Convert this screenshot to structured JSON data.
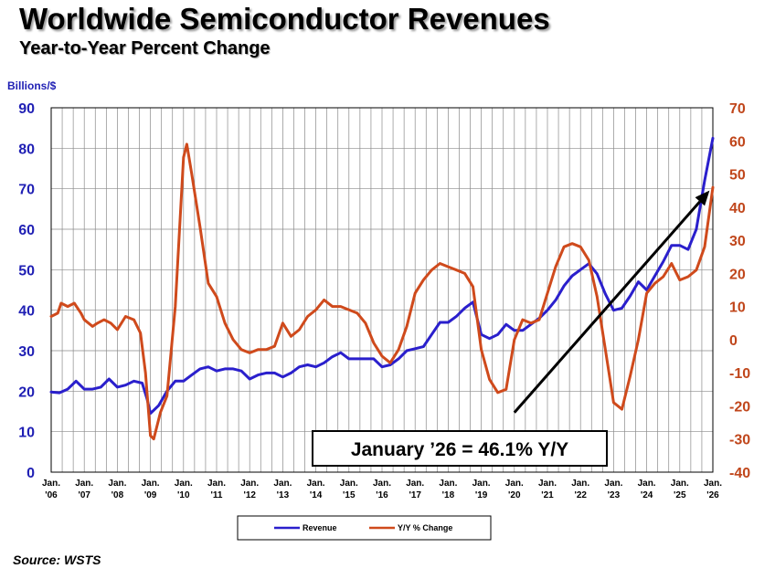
{
  "header": {
    "title": "Worldwide Semiconductor Revenues",
    "subtitle": "Year-to-Year Percent Change"
  },
  "footer": {
    "source": "Source: WSTS"
  },
  "colors": {
    "revenue": "#2a1fcc",
    "yoy": "#cf4a1c",
    "grid": "#8a8a8a",
    "arrow": "#000000"
  },
  "chart_data": {
    "type": "line",
    "ylabel_left": "Billions/$",
    "ylim_left": [
      0,
      90
    ],
    "yticks_left": [
      0,
      10,
      20,
      30,
      40,
      50,
      60,
      70,
      80,
      90
    ],
    "ylim_right": [
      -40,
      70
    ],
    "yticks_right": [
      -40,
      -30,
      -20,
      -10,
      0,
      10,
      20,
      30,
      40,
      50,
      60,
      70
    ],
    "x_range": [
      2006.0,
      2026.0
    ],
    "x_ticks": [
      {
        "year": 2006,
        "label_top": "Jan.",
        "label_bottom": "'06"
      },
      {
        "year": 2007,
        "label_top": "Jan.",
        "label_bottom": "'07"
      },
      {
        "year": 2008,
        "label_top": "Jan.",
        "label_bottom": "'08"
      },
      {
        "year": 2009,
        "label_top": "Jan.",
        "label_bottom": "'09"
      },
      {
        "year": 2010,
        "label_top": "Jan.",
        "label_bottom": "'10"
      },
      {
        "year": 2011,
        "label_top": "Jan.",
        "label_bottom": "'11"
      },
      {
        "year": 2012,
        "label_top": "Jan.",
        "label_bottom": "'12"
      },
      {
        "year": 2013,
        "label_top": "Jan.",
        "label_bottom": "'13"
      },
      {
        "year": 2014,
        "label_top": "Jan.",
        "label_bottom": "'14"
      },
      {
        "year": 2015,
        "label_top": "Jan.",
        "label_bottom": "'15"
      },
      {
        "year": 2016,
        "label_top": "Jan.",
        "label_bottom": "'16"
      },
      {
        "year": 2017,
        "label_top": "Jan.",
        "label_bottom": "'17"
      },
      {
        "year": 2018,
        "label_top": "Jan.",
        "label_bottom": "'18"
      },
      {
        "year": 2019,
        "label_top": "Jan.",
        "label_bottom": "'19"
      },
      {
        "year": 2020,
        "label_top": "Jan.",
        "label_bottom": "'20"
      },
      {
        "year": 2021,
        "label_top": "Jan.",
        "label_bottom": "'21"
      },
      {
        "year": 2022,
        "label_top": "Jan.",
        "label_bottom": "'22"
      },
      {
        "year": 2023,
        "label_top": "Jan.",
        "label_bottom": "'23"
      },
      {
        "year": 2024,
        "label_top": "Jan.",
        "label_bottom": "'24"
      },
      {
        "year": 2025,
        "label_top": "Jan.",
        "label_bottom": "'25"
      },
      {
        "year": 2026,
        "label_top": "Jan.",
        "label_bottom": "'26"
      }
    ],
    "grid": "vertical monthly lines and horizontal lines at left-axis ticks",
    "legend_position": "bottom-center",
    "annotation": "January ’26 = 46.1% Y/Y",
    "trend_arrow": {
      "from": [
        2020.0,
        -22
      ],
      "to": [
        2025.9,
        45
      ]
    },
    "series": [
      {
        "name": "Revenue",
        "axis": "left",
        "points": [
          [
            2006.0,
            19.8
          ],
          [
            2006.25,
            19.6
          ],
          [
            2006.5,
            20.5
          ],
          [
            2006.75,
            22.5
          ],
          [
            2007.0,
            20.5
          ],
          [
            2007.25,
            20.5
          ],
          [
            2007.5,
            21.0
          ],
          [
            2007.75,
            23.0
          ],
          [
            2008.0,
            21.0
          ],
          [
            2008.25,
            21.5
          ],
          [
            2008.5,
            22.5
          ],
          [
            2008.75,
            22.0
          ],
          [
            2008.9,
            18.0
          ],
          [
            2009.0,
            14.5
          ],
          [
            2009.25,
            16.5
          ],
          [
            2009.5,
            20.0
          ],
          [
            2009.75,
            22.5
          ],
          [
            2010.0,
            22.5
          ],
          [
            2010.25,
            24.0
          ],
          [
            2010.5,
            25.5
          ],
          [
            2010.75,
            26.0
          ],
          [
            2011.0,
            25.0
          ],
          [
            2011.25,
            25.5
          ],
          [
            2011.5,
            25.5
          ],
          [
            2011.75,
            25.0
          ],
          [
            2012.0,
            23.0
          ],
          [
            2012.25,
            24.0
          ],
          [
            2012.5,
            24.5
          ],
          [
            2012.75,
            24.5
          ],
          [
            2013.0,
            23.5
          ],
          [
            2013.25,
            24.5
          ],
          [
            2013.5,
            26.0
          ],
          [
            2013.75,
            26.5
          ],
          [
            2014.0,
            26.0
          ],
          [
            2014.25,
            27.0
          ],
          [
            2014.5,
            28.5
          ],
          [
            2014.75,
            29.5
          ],
          [
            2015.0,
            28.0
          ],
          [
            2015.25,
            28.0
          ],
          [
            2015.5,
            28.0
          ],
          [
            2015.75,
            28.0
          ],
          [
            2016.0,
            26.0
          ],
          [
            2016.25,
            26.5
          ],
          [
            2016.5,
            28.0
          ],
          [
            2016.75,
            30.0
          ],
          [
            2017.0,
            30.5
          ],
          [
            2017.25,
            31.0
          ],
          [
            2017.5,
            34.0
          ],
          [
            2017.75,
            37.0
          ],
          [
            2018.0,
            37.0
          ],
          [
            2018.25,
            38.5
          ],
          [
            2018.5,
            40.5
          ],
          [
            2018.75,
            42.0
          ],
          [
            2019.0,
            34.0
          ],
          [
            2019.25,
            33.0
          ],
          [
            2019.5,
            34.0
          ],
          [
            2019.75,
            36.5
          ],
          [
            2020.0,
            35.0
          ],
          [
            2020.25,
            35.0
          ],
          [
            2020.5,
            36.5
          ],
          [
            2020.75,
            38.0
          ],
          [
            2021.0,
            40.0
          ],
          [
            2021.25,
            42.5
          ],
          [
            2021.5,
            46.0
          ],
          [
            2021.75,
            48.5
          ],
          [
            2022.0,
            50.0
          ],
          [
            2022.25,
            51.5
          ],
          [
            2022.5,
            49.0
          ],
          [
            2022.75,
            44.0
          ],
          [
            2023.0,
            40.0
          ],
          [
            2023.25,
            40.5
          ],
          [
            2023.5,
            43.5
          ],
          [
            2023.75,
            47.0
          ],
          [
            2024.0,
            45.0
          ],
          [
            2024.25,
            48.5
          ],
          [
            2024.5,
            52.0
          ],
          [
            2024.75,
            56.0
          ],
          [
            2025.0,
            56.0
          ],
          [
            2025.25,
            55.0
          ],
          [
            2025.5,
            60.0
          ],
          [
            2025.75,
            72.0
          ],
          [
            2026.0,
            82.5
          ]
        ]
      },
      {
        "name": "Y/Y % Change",
        "axis": "right",
        "points": [
          [
            2006.0,
            7
          ],
          [
            2006.2,
            8
          ],
          [
            2006.3,
            11
          ],
          [
            2006.5,
            10
          ],
          [
            2006.7,
            11
          ],
          [
            2006.9,
            8
          ],
          [
            2007.0,
            6
          ],
          [
            2007.25,
            4
          ],
          [
            2007.4,
            5
          ],
          [
            2007.6,
            6
          ],
          [
            2007.8,
            5
          ],
          [
            2008.0,
            3
          ],
          [
            2008.25,
            7
          ],
          [
            2008.5,
            6
          ],
          [
            2008.7,
            2
          ],
          [
            2008.85,
            -10
          ],
          [
            2009.0,
            -29
          ],
          [
            2009.1,
            -30
          ],
          [
            2009.3,
            -22
          ],
          [
            2009.5,
            -17
          ],
          [
            2009.75,
            10
          ],
          [
            2010.0,
            55
          ],
          [
            2010.1,
            59
          ],
          [
            2010.25,
            50
          ],
          [
            2010.5,
            34
          ],
          [
            2010.75,
            17
          ],
          [
            2011.0,
            13
          ],
          [
            2011.25,
            5
          ],
          [
            2011.5,
            0
          ],
          [
            2011.75,
            -3
          ],
          [
            2012.0,
            -4
          ],
          [
            2012.25,
            -3
          ],
          [
            2012.5,
            -3
          ],
          [
            2012.75,
            -2
          ],
          [
            2013.0,
            5
          ],
          [
            2013.25,
            1
          ],
          [
            2013.5,
            3
          ],
          [
            2013.75,
            7
          ],
          [
            2014.0,
            9
          ],
          [
            2014.25,
            12
          ],
          [
            2014.5,
            10
          ],
          [
            2014.75,
            10
          ],
          [
            2015.0,
            9
          ],
          [
            2015.25,
            8
          ],
          [
            2015.5,
            5
          ],
          [
            2015.75,
            -1
          ],
          [
            2016.0,
            -5
          ],
          [
            2016.25,
            -7
          ],
          [
            2016.5,
            -3
          ],
          [
            2016.75,
            4
          ],
          [
            2017.0,
            14
          ],
          [
            2017.25,
            18
          ],
          [
            2017.5,
            21
          ],
          [
            2017.75,
            23
          ],
          [
            2018.0,
            22
          ],
          [
            2018.25,
            21
          ],
          [
            2018.5,
            20
          ],
          [
            2018.75,
            16
          ],
          [
            2019.0,
            -3
          ],
          [
            2019.25,
            -12
          ],
          [
            2019.5,
            -16
          ],
          [
            2019.75,
            -15
          ],
          [
            2020.0,
            0
          ],
          [
            2020.25,
            6
          ],
          [
            2020.5,
            5
          ],
          [
            2020.75,
            6
          ],
          [
            2021.0,
            14
          ],
          [
            2021.25,
            22
          ],
          [
            2021.5,
            28
          ],
          [
            2021.75,
            29
          ],
          [
            2022.0,
            28
          ],
          [
            2022.25,
            24
          ],
          [
            2022.5,
            13
          ],
          [
            2022.75,
            -3
          ],
          [
            2023.0,
            -19
          ],
          [
            2023.25,
            -21
          ],
          [
            2023.5,
            -11
          ],
          [
            2023.75,
            0
          ],
          [
            2024.0,
            14
          ],
          [
            2024.25,
            17
          ],
          [
            2024.5,
            19
          ],
          [
            2024.75,
            23
          ],
          [
            2025.0,
            18
          ],
          [
            2025.25,
            19
          ],
          [
            2025.5,
            21
          ],
          [
            2025.75,
            28
          ],
          [
            2026.0,
            46
          ]
        ]
      }
    ]
  }
}
